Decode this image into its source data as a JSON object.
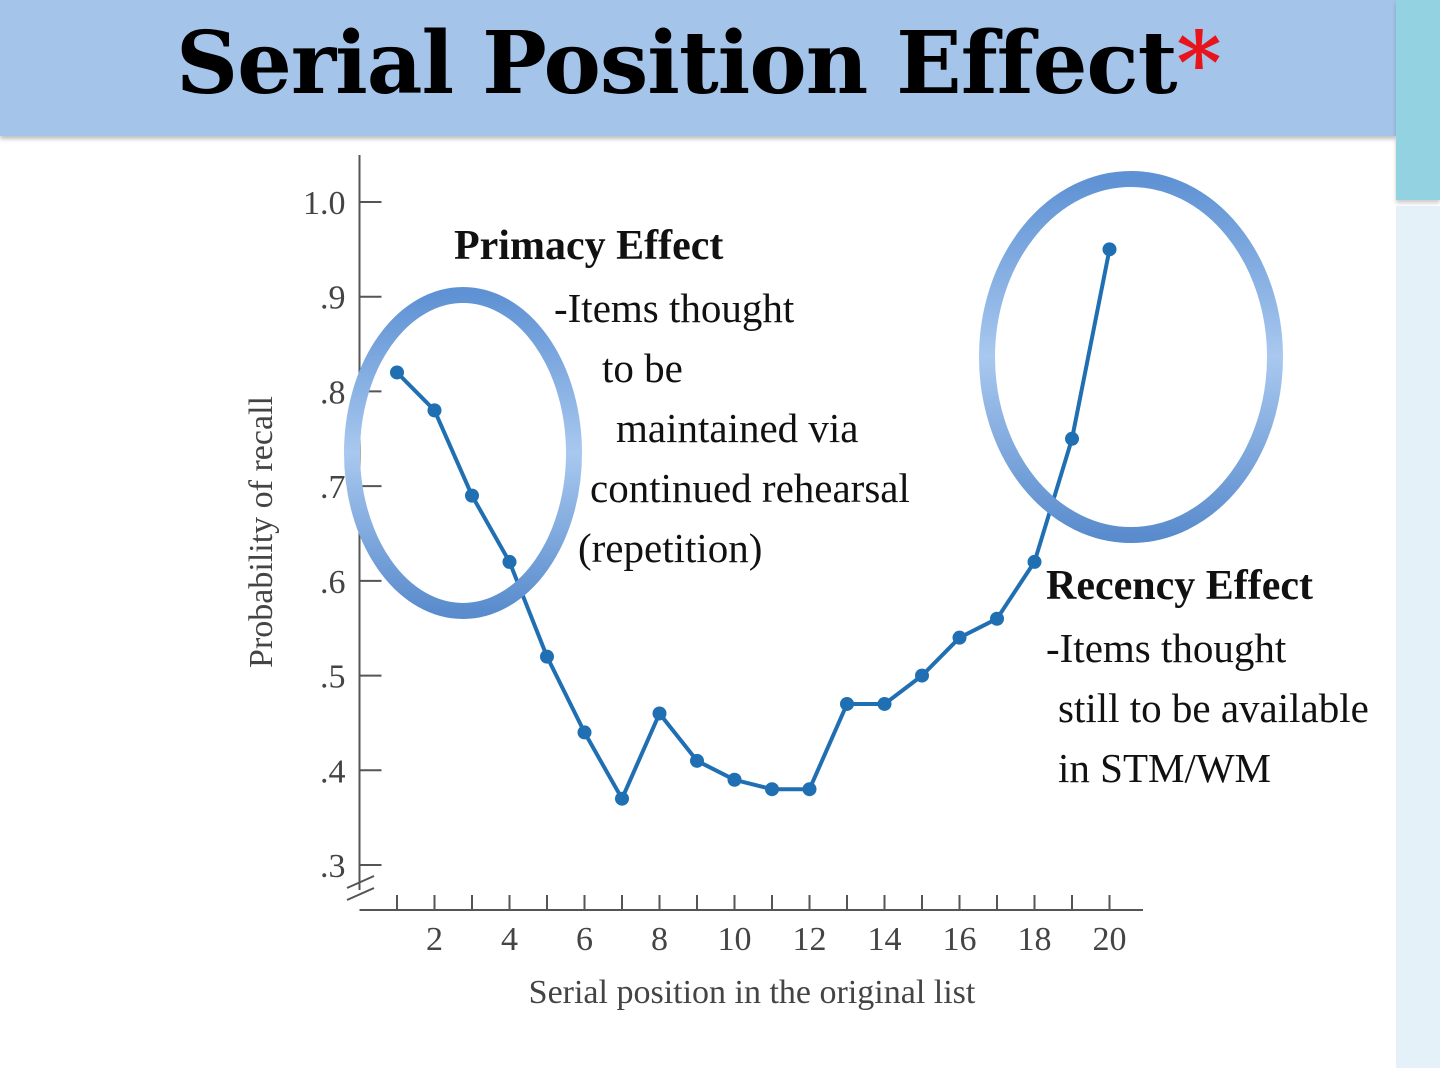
{
  "slide": {
    "title": "Serial Position Effect",
    "title_mark": "*",
    "colors": {
      "title_bar": "#a4c4ea",
      "title_mark": "#e8141c",
      "line": "#1f6fb2",
      "ellipse": "#6f9fd9"
    }
  },
  "annotations": {
    "primacy": {
      "heading": "Primacy Effect",
      "lines": [
        "-Items thought",
        "to be",
        "maintained via",
        "continued rehearsal",
        "(repetition)"
      ]
    },
    "recency": {
      "heading": "Recency Effect",
      "lines": [
        "-Items thought",
        "still to be available",
        "in  STM/WM"
      ]
    }
  },
  "chart_data": {
    "type": "line",
    "xlabel": "Serial position in the original list",
    "ylabel": "Probability of recall",
    "x": [
      1,
      2,
      3,
      4,
      5,
      6,
      7,
      8,
      9,
      10,
      11,
      12,
      13,
      14,
      15,
      16,
      17,
      18,
      19,
      20
    ],
    "values": [
      0.82,
      0.78,
      0.69,
      0.62,
      0.52,
      0.44,
      0.37,
      0.46,
      0.41,
      0.39,
      0.38,
      0.38,
      0.47,
      0.47,
      0.5,
      0.54,
      0.56,
      0.62,
      0.75,
      0.95
    ],
    "xlim": [
      0,
      21
    ],
    "ylim": [
      0.3,
      1.0
    ],
    "xticks": [
      2,
      4,
      6,
      8,
      10,
      12,
      14,
      16,
      18,
      20
    ],
    "xtick_labels": [
      "2",
      "4",
      "6",
      "8",
      "10",
      "12",
      "14",
      "16",
      "18",
      "20"
    ],
    "yticks": [
      0.3,
      0.4,
      0.5,
      0.6,
      0.7,
      0.8,
      0.9,
      1.0
    ],
    "ytick_labels": [
      ".3",
      ".4",
      ".5",
      ".6",
      ".7",
      ".8",
      ".9",
      "1.0"
    ],
    "axis_break": true,
    "grid": false,
    "highlights": [
      {
        "label": "Primacy Effect",
        "x_range": [
          1,
          4
        ]
      },
      {
        "label": "Recency Effect",
        "x_range": [
          19,
          20
        ]
      }
    ]
  }
}
